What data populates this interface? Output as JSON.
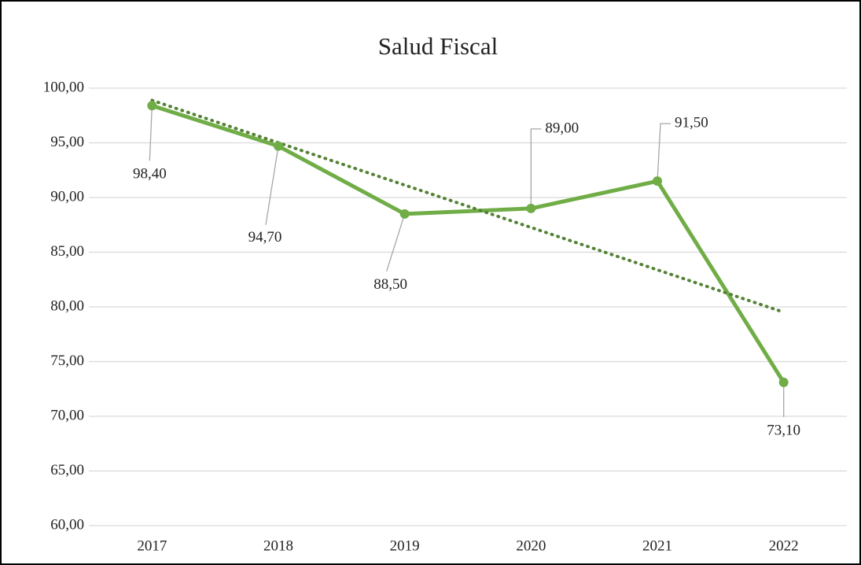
{
  "chart_data": {
    "type": "line",
    "title": "Salud Fiscal",
    "categories": [
      "2017",
      "2018",
      "2019",
      "2020",
      "2021",
      "2022"
    ],
    "series": [
      {
        "name": "Salud Fiscal",
        "color": "#70ad47",
        "values": [
          98.4,
          94.7,
          88.5,
          89.0,
          91.5,
          73.1
        ],
        "value_labels": [
          "98,40",
          "94,70",
          "88,50",
          "89,00",
          "91,50",
          "73,10"
        ],
        "trendline": "linear",
        "trendline_color": "#548235"
      }
    ],
    "ylim": [
      60,
      100
    ],
    "yticks": [
      {
        "value": 60,
        "label": "60,00"
      },
      {
        "value": 65,
        "label": "65,00"
      },
      {
        "value": 70,
        "label": "70,00"
      },
      {
        "value": 75,
        "label": "75,00"
      },
      {
        "value": 80,
        "label": "80,00"
      },
      {
        "value": 85,
        "label": "85,00"
      },
      {
        "value": 90,
        "label": "90,00"
      },
      {
        "value": 95,
        "label": "95,00"
      },
      {
        "value": 100,
        "label": "100,00"
      }
    ],
    "grid": true
  }
}
